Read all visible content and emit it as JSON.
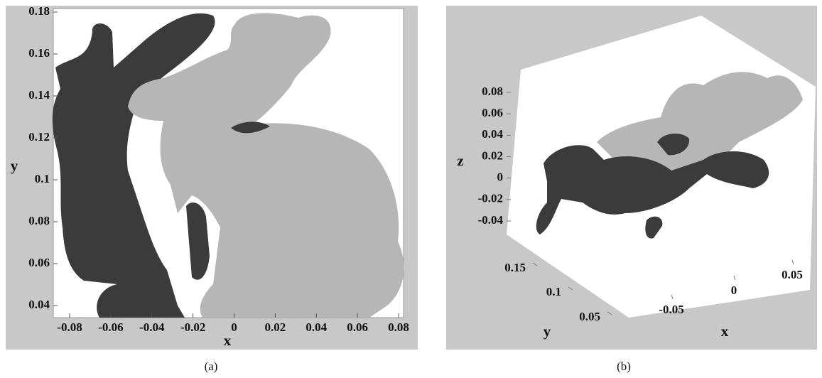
{
  "panels": [
    {
      "caption": "(a)",
      "xlabel": "x",
      "ylabel": "y",
      "xticks": [
        -0.08,
        -0.06,
        -0.04,
        -0.02,
        0,
        0.02,
        0.04,
        0.06,
        0.08
      ],
      "yticks": [
        0.18,
        0.16,
        0.14,
        0.12,
        0.1,
        0.08,
        0.06,
        0.04
      ]
    },
    {
      "caption": "(b)",
      "xlabel": "x",
      "ylabel": "y",
      "zlabel": "z",
      "xticks": [
        -0.05,
        0,
        0.05
      ],
      "yticks": [
        0.15,
        0.1,
        0.05
      ],
      "zticks": [
        0.08,
        0.06,
        0.04,
        0.02,
        0,
        -0.02,
        -0.04
      ]
    }
  ]
}
